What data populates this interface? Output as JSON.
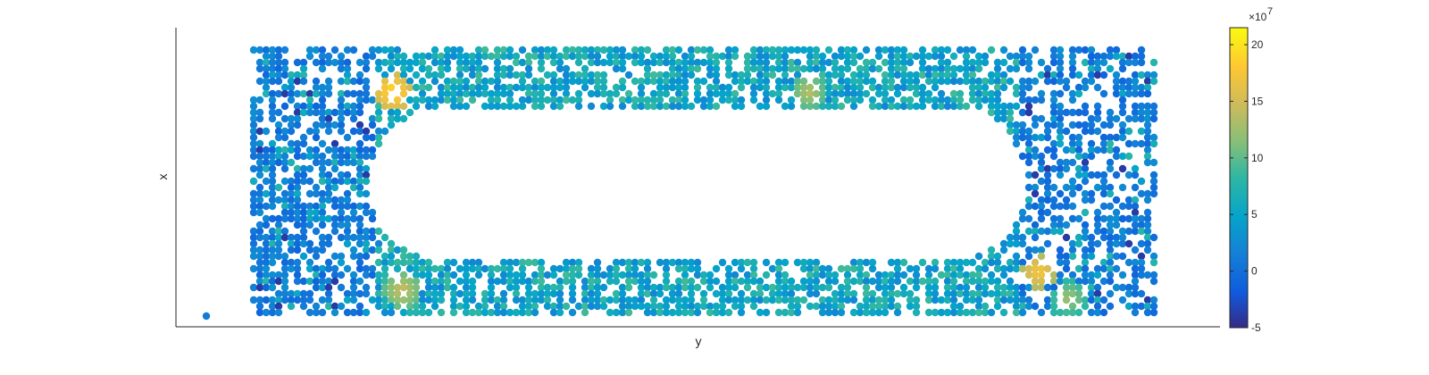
{
  "chart_data": {
    "type": "scatter",
    "title": "",
    "xlabel": "y",
    "ylabel": "x",
    "x_ticks_visible": false,
    "y_ticks_visible": false,
    "grid": false,
    "colormap": "parula",
    "colorbar": {
      "position": "right",
      "multiplier_label": "×10",
      "multiplier_exponent": "7",
      "tick_labels": [
        "20",
        "15",
        "10",
        "5",
        "0",
        "-5"
      ],
      "tick_values": [
        20,
        15,
        10,
        5,
        0,
        -5
      ],
      "clim": [
        -5,
        21.5
      ]
    },
    "description_of_points": "scatter of filled circles forming a rounded-rectangle ring; most values near 0-5 (blue), some 5-10 (teal), a few high values 15-21 (yellow/orange)",
    "hotspots": [
      {
        "u": 0.155,
        "v": 0.84,
        "value": 20
      },
      {
        "u": 0.165,
        "v": 0.09,
        "value": 15
      },
      {
        "u": 0.617,
        "v": 0.84,
        "value": 14
      },
      {
        "u": 0.872,
        "v": 0.16,
        "value": 18
      },
      {
        "u": 0.906,
        "v": 0.06,
        "value": 13
      }
    ]
  }
}
